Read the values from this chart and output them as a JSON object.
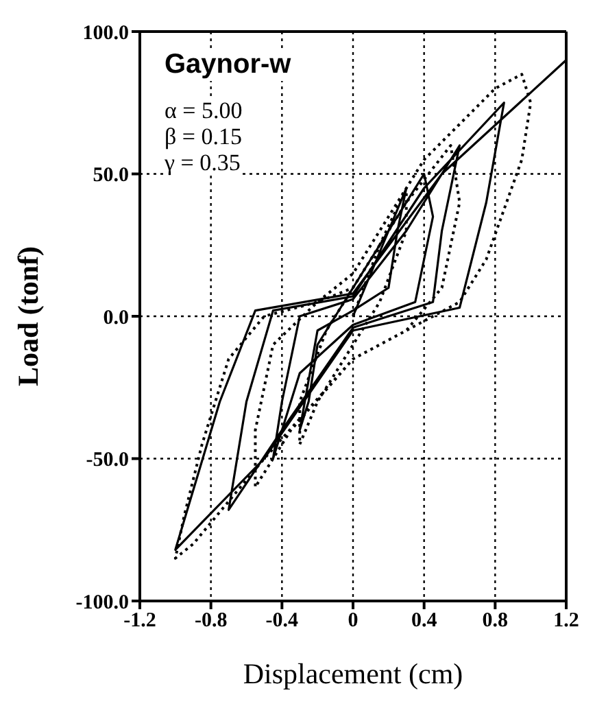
{
  "chart_data": {
    "type": "line",
    "xlabel": "Displacement (cm)",
    "ylabel": "Load (tonf)",
    "xlim": [
      -1.2,
      1.2
    ],
    "xticks": [
      -1.2,
      -0.8,
      -0.4,
      0,
      0.4,
      0.8,
      1.2
    ],
    "ylim": [
      -100,
      100
    ],
    "yticks": [
      {
        "value": -100,
        "label": "-100.0"
      },
      {
        "value": -50,
        "label": "-50.0"
      },
      {
        "value": 0,
        "label": "0.0"
      },
      {
        "value": 50,
        "label": "50.0"
      },
      {
        "value": 100,
        "label": "100.0"
      }
    ],
    "grid": true,
    "marker": "none",
    "annotations": [
      "Gaynor-w",
      "α = 5.00",
      "β = 0.15",
      "γ = 0.35"
    ],
    "series": [
      {
        "color": "#000000",
        "line_style": "solid",
        "x": [
          0,
          0.1,
          0.2,
          0.3,
          0.25,
          0.2,
          0,
          -0.2,
          -0.3,
          -0.25,
          -0.2,
          -0.05,
          0.1,
          0.4,
          0.45,
          0.35,
          0,
          -0.3,
          -0.45,
          -0.4,
          -0.3,
          0,
          0.3,
          0.6,
          0.5,
          0.45,
          0,
          -0.4,
          -0.7,
          -0.6,
          -0.45,
          0,
          0.4,
          0.85,
          0.75,
          0.6,
          0,
          -0.5,
          -1.0,
          -0.75,
          -0.55,
          0,
          0.5,
          1.2
        ],
        "values": [
          0,
          15,
          30,
          45,
          30,
          10,
          2,
          -5,
          -40,
          -30,
          -10,
          5,
          20,
          50,
          35,
          5,
          -3,
          -20,
          -50,
          -30,
          0,
          6,
          30,
          60,
          30,
          5,
          -4,
          -40,
          -68,
          -30,
          2,
          7,
          45,
          75,
          40,
          3,
          -5,
          -50,
          -82,
          -30,
          2,
          8,
          50,
          90
        ]
      },
      {
        "color": "#000000",
        "line_style": "dotted",
        "x": [
          0,
          0.15,
          0.3,
          0.3,
          0.15,
          0,
          -0.2,
          -0.3,
          -0.3,
          -0.15,
          0,
          0.3,
          0.55,
          0.6,
          0.5,
          0.3,
          0,
          -0.35,
          -0.55,
          -0.55,
          -0.45,
          -0.2,
          0,
          0.4,
          0.8,
          0.95,
          1.0,
          0.95,
          0.75,
          0.6,
          0.3,
          0,
          -0.5,
          -0.9,
          -1.0,
          -0.95,
          -0.85,
          -0.7,
          -0.5,
          -0.2,
          0
        ],
        "values": [
          0,
          25,
          45,
          30,
          5,
          -10,
          -30,
          -45,
          -30,
          -5,
          10,
          40,
          60,
          40,
          10,
          -5,
          -15,
          -40,
          -60,
          -40,
          -10,
          5,
          15,
          55,
          80,
          85,
          75,
          55,
          20,
          5,
          -5,
          -15,
          -50,
          -80,
          -85,
          -70,
          -45,
          -15,
          0,
          5,
          10
        ]
      }
    ]
  }
}
